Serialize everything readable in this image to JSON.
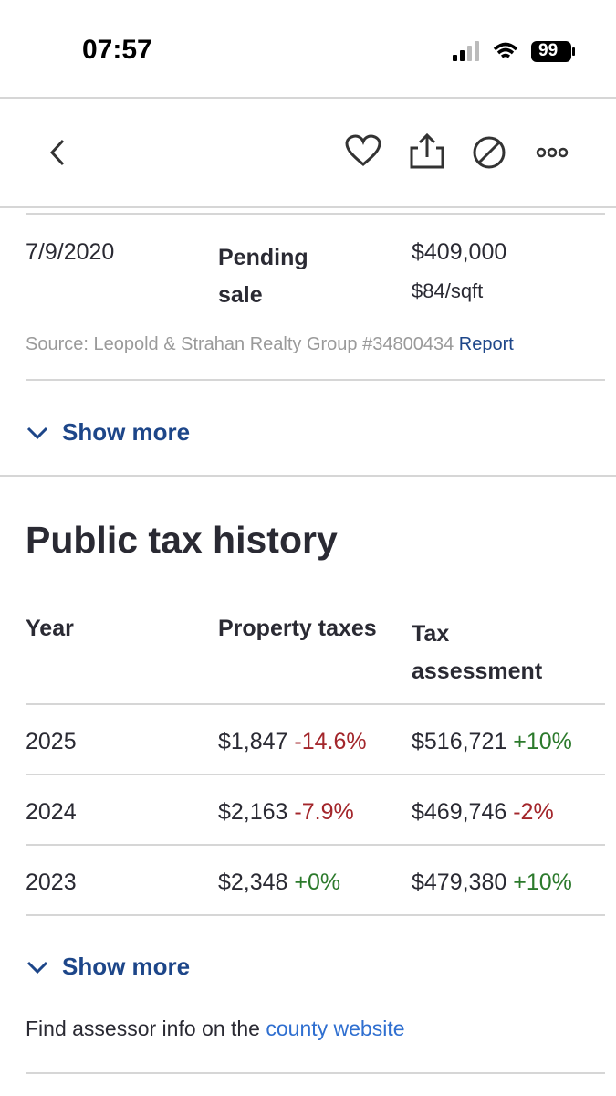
{
  "status_bar": {
    "time": "07:57",
    "battery": "99"
  },
  "sale_history": {
    "rows": [
      {
        "date": "7/9/2020",
        "event": "Pending sale",
        "price": "$409,000",
        "price_per_sqft": "$84/sqft"
      }
    ],
    "source": "Source: Leopold & Strahan Realty Group #34800434",
    "report_link": "Report",
    "show_more": "Show more"
  },
  "tax_history": {
    "title": "Public tax history",
    "columns": [
      "Year",
      "Property taxes",
      "Tax assessment"
    ],
    "rows": [
      {
        "year": "2025",
        "taxes": "$1,847",
        "taxes_change": "-14.6%",
        "assessment": "$516,721",
        "assessment_change": "+10%"
      },
      {
        "year": "2024",
        "taxes": "$2,163",
        "taxes_change": "-7.9%",
        "assessment": "$469,746",
        "assessment_change": "-2%"
      },
      {
        "year": "2023",
        "taxes": "$2,348",
        "taxes_change": "+0%",
        "assessment": "$479,380",
        "assessment_change": "+10%"
      }
    ],
    "show_more": "Show more",
    "footer_text": "Find assessor info on the",
    "footer_link": "county website"
  }
}
